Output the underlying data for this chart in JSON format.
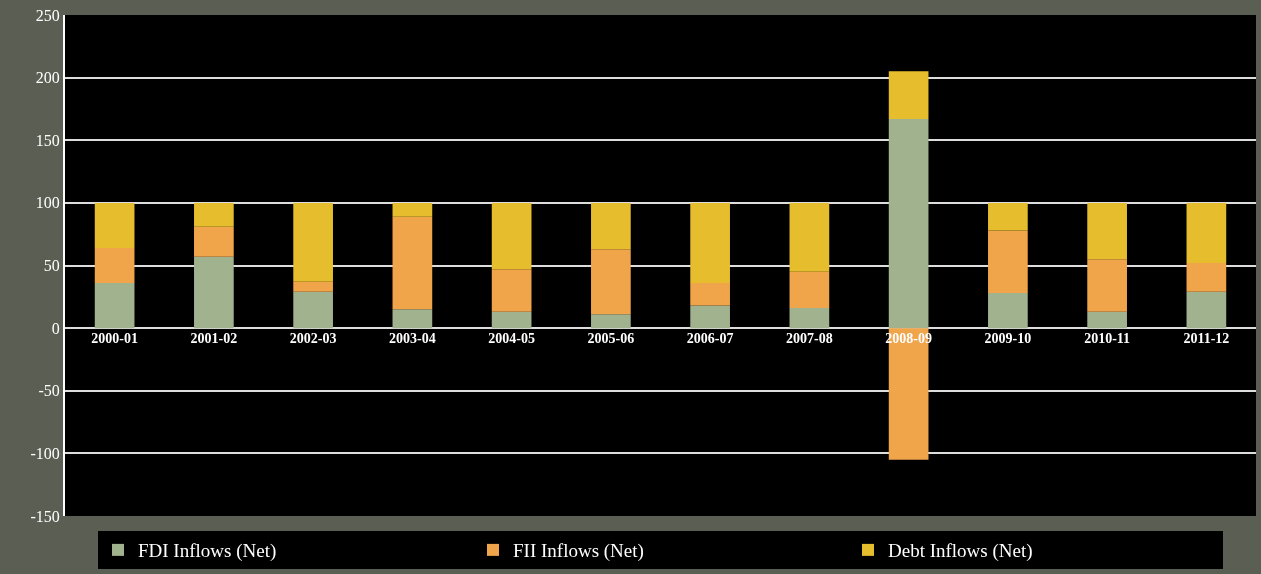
{
  "chart_data": {
    "type": "bar",
    "stacked": true,
    "categories": [
      "2000-01",
      "2001-02",
      "2002-03",
      "2003-04",
      "2004-05",
      "2005-06",
      "2006-07",
      "2007-08",
      "2008-09",
      "2009-10",
      "2010-11",
      "2011-12"
    ],
    "series": [
      {
        "name": "FDI Inflows (Net)",
        "color": "#a0b28e",
        "values": [
          36,
          57,
          29,
          15,
          13,
          11,
          18,
          16,
          167,
          28,
          13,
          29
        ]
      },
      {
        "name": "FII Inflows (Net)",
        "color": "#f0a54b",
        "values": [
          28,
          24,
          8,
          74,
          34,
          52,
          18,
          29,
          -105,
          50,
          42,
          23
        ]
      },
      {
        "name": "Debt Inflows (Net)",
        "color": "#e6bd2d",
        "values": [
          36,
          19,
          63,
          11,
          53,
          37,
          64,
          55,
          38,
          22,
          45,
          48
        ]
      }
    ],
    "ylim": [
      -150,
      250
    ],
    "yticks": [
      -150,
      -100,
      -50,
      0,
      50,
      100,
      150,
      200,
      250
    ],
    "grid": "y",
    "legend": "bottom"
  }
}
